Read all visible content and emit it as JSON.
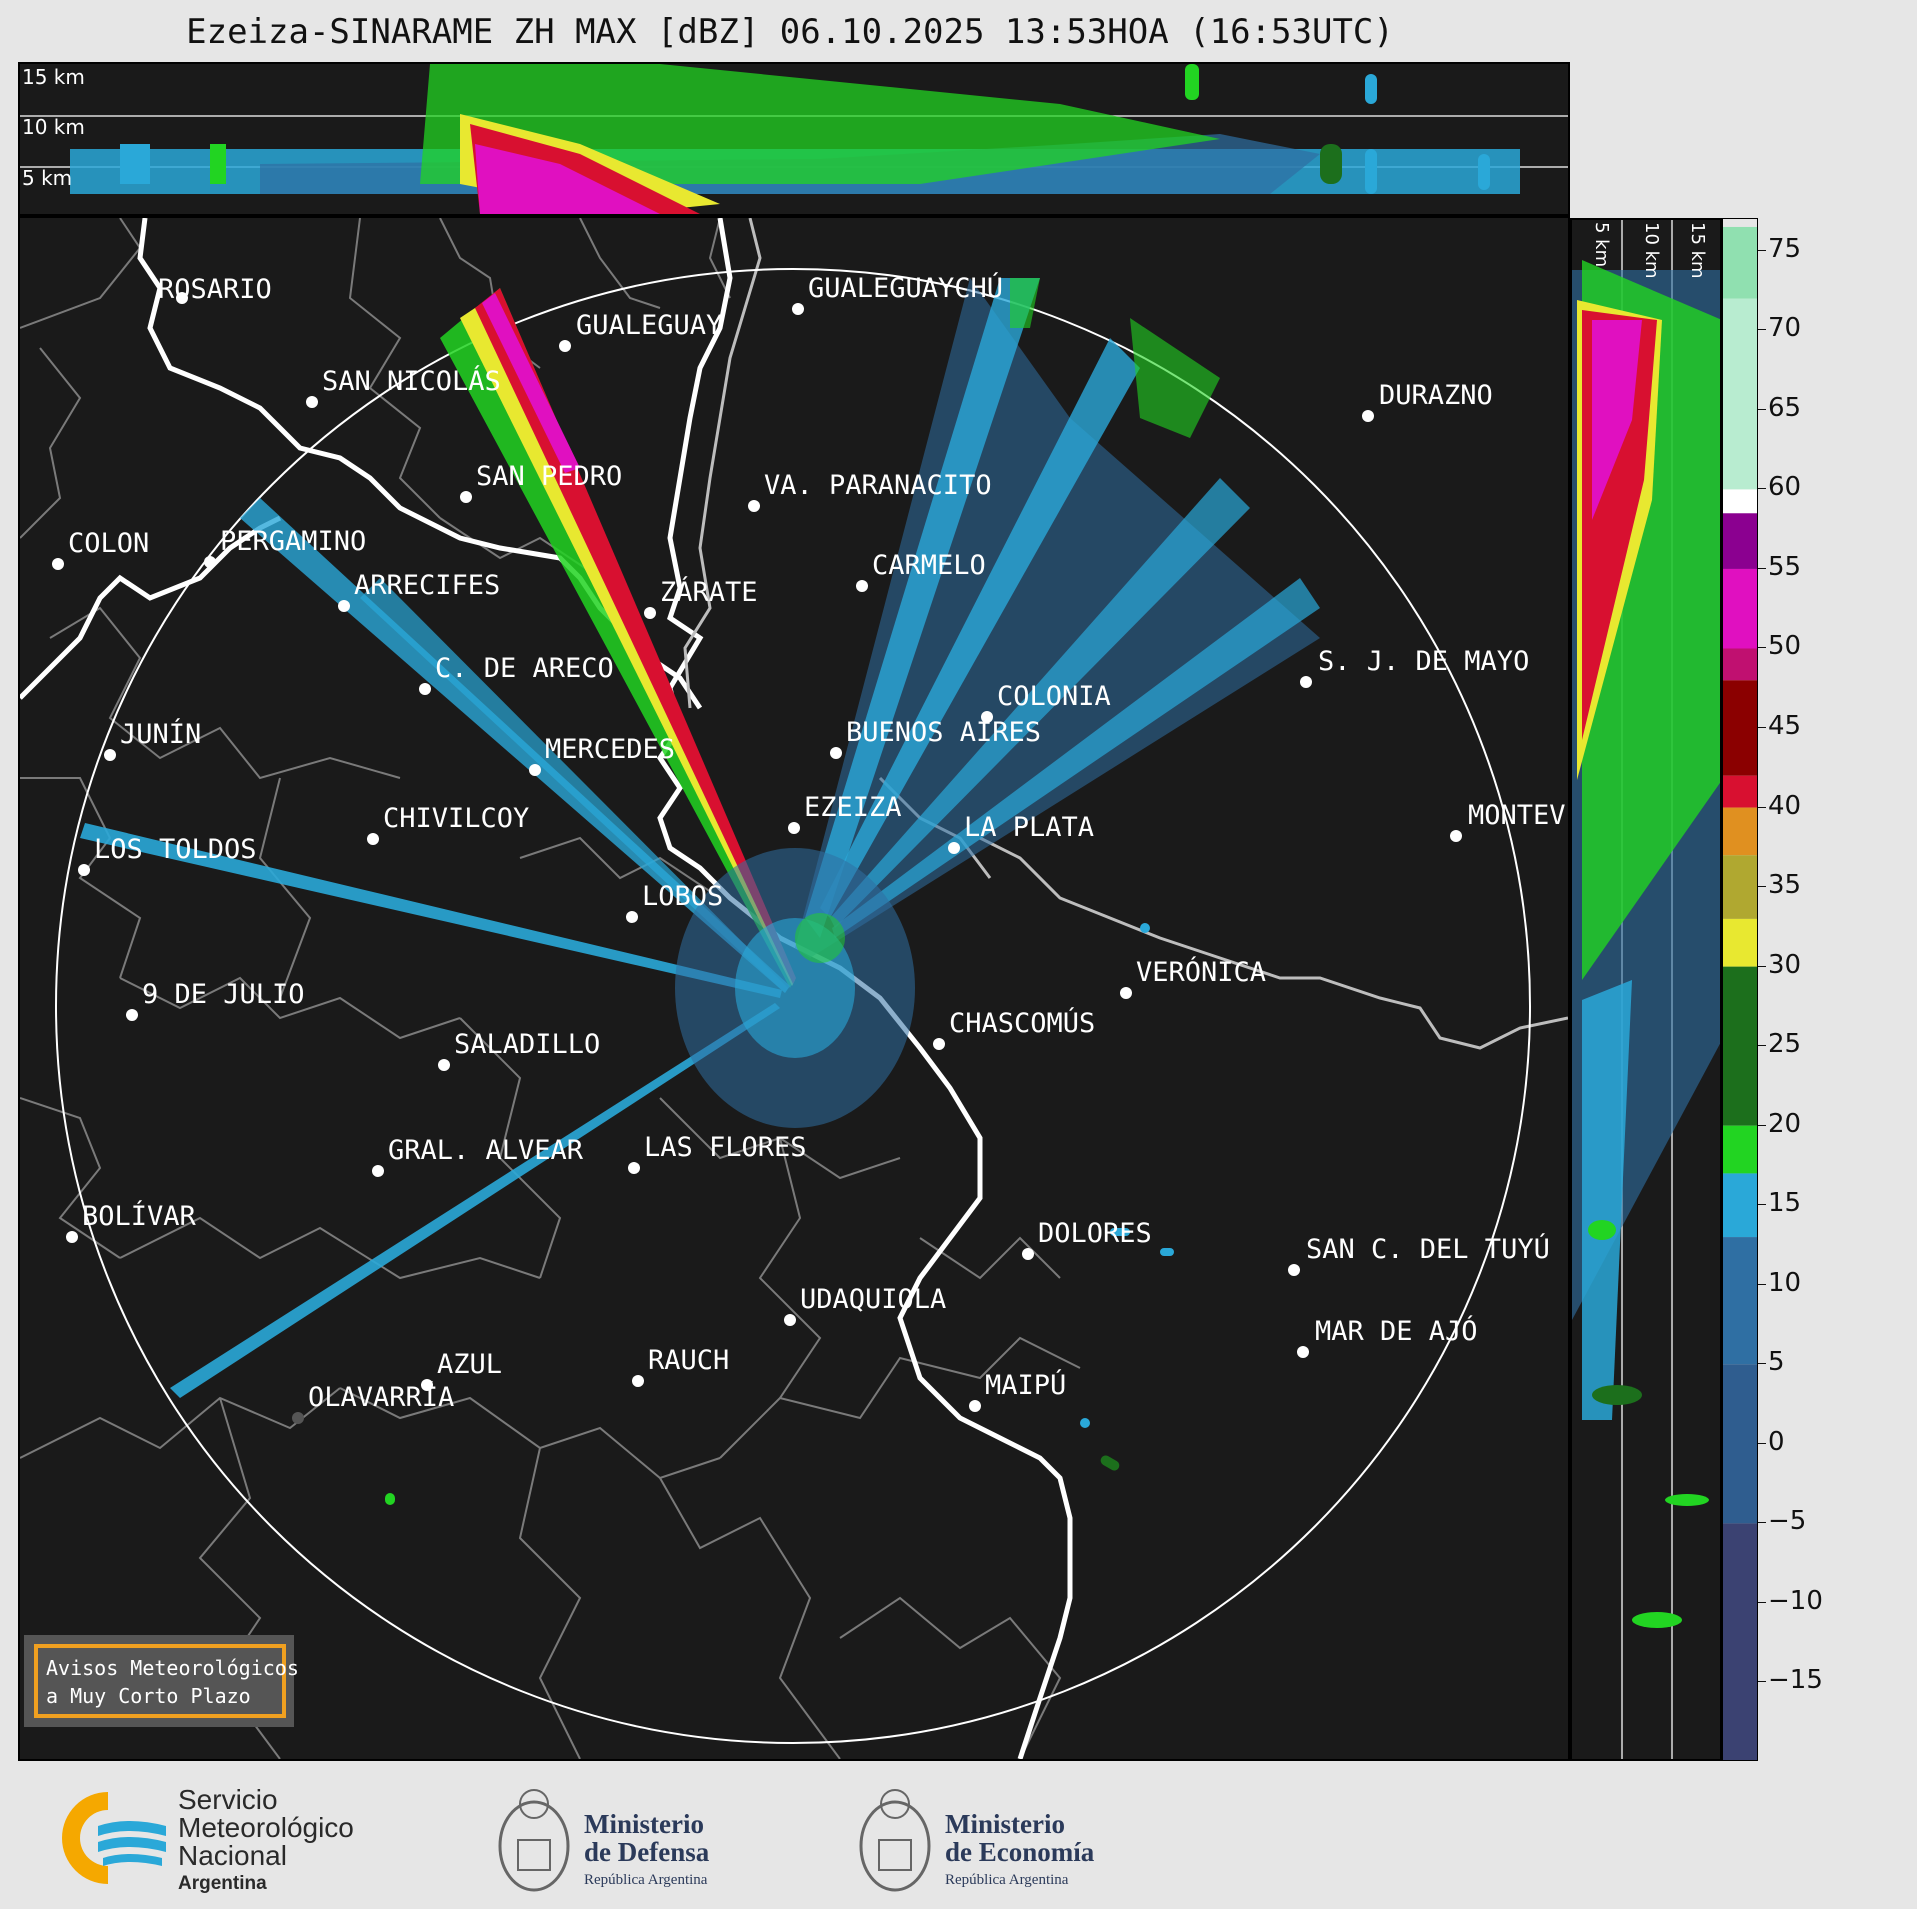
{
  "title": "Ezeiza-SINARAME ZH MAX [dBZ] 06.10.2025 13:53HOA (16:53UTC)",
  "top_panel": {
    "height_labels": [
      "15 km",
      "10 km",
      "5 km"
    ]
  },
  "side_panel": {
    "height_labels": [
      "5 km",
      "10 km",
      "15 km"
    ]
  },
  "colorbar": {
    "ticks": [
      "75",
      "70",
      "65",
      "60",
      "55",
      "50",
      "45",
      "40",
      "35",
      "30",
      "25",
      "20",
      "15",
      "10",
      "5",
      "0",
      "−5",
      "−10",
      "−15"
    ],
    "range": [
      -20,
      77
    ],
    "colors": {
      "dark_blue": "#3b4272",
      "blue": "#2f6fa3",
      "light_blue": "#2aa8d8",
      "green": "#22d422",
      "dark_green": "#1c6f1c",
      "yellow": "#e8e830",
      "olive": "#b0a830",
      "orange": "#e09020",
      "red": "#d81030",
      "dark_red": "#8b0000",
      "magenta": "#e010c0",
      "purple": "#8b0090",
      "white": "#ffffff",
      "pale_green": "#90e0b0"
    }
  },
  "cities": [
    {
      "name": "ROSARIO"
    },
    {
      "name": "GUALEGUAYCHÚ"
    },
    {
      "name": "GUALEGUAY"
    },
    {
      "name": "SAN NICOLÁS"
    },
    {
      "name": "DURAZNO"
    },
    {
      "name": "SAN PEDRO"
    },
    {
      "name": "VA. PARANACITO"
    },
    {
      "name": "COLON"
    },
    {
      "name": "PERGAMINO"
    },
    {
      "name": "CARMELO"
    },
    {
      "name": "ARRECIFES"
    },
    {
      "name": "ZÁRATE"
    },
    {
      "name": "S. J. DE MAYO"
    },
    {
      "name": "C. DE ARECO"
    },
    {
      "name": "COLONIA"
    },
    {
      "name": "JUNÍN"
    },
    {
      "name": "BUENOS AIRES"
    },
    {
      "name": "MERCEDES"
    },
    {
      "name": "EZEIZA"
    },
    {
      "name": "MONTEV"
    },
    {
      "name": "CHIVILCOY"
    },
    {
      "name": "LA PLATA"
    },
    {
      "name": "LOS TOLDOS"
    },
    {
      "name": "LOBOS"
    },
    {
      "name": "VERÓNICA"
    },
    {
      "name": "9 DE JULIO"
    },
    {
      "name": "CHASCOMÚS"
    },
    {
      "name": "SALADILLO"
    },
    {
      "name": "GRAL. ALVEAR"
    },
    {
      "name": "LAS FLORES"
    },
    {
      "name": "BOLÍVAR"
    },
    {
      "name": "DOLORES"
    },
    {
      "name": "SAN C. DEL TUYÚ"
    },
    {
      "name": "UDAQUIOLA"
    },
    {
      "name": "MAR DE AJÓ"
    },
    {
      "name": "AZUL"
    },
    {
      "name": "RAUCH"
    },
    {
      "name": "OLAVARRÍA"
    },
    {
      "name": "MAIPÚ"
    }
  ],
  "warning_box": {
    "line1": "Avisos Meteorológicos",
    "line2": "a Muy Corto Plazo",
    "border_color": "#f0a020"
  },
  "logos": {
    "smn": {
      "line1": "Servicio",
      "line2": "Meteorológico",
      "line3": "Nacional",
      "line4": "Argentina"
    },
    "defensa": {
      "line1": "Ministerio",
      "line2": "de Defensa",
      "line3": "República Argentina"
    },
    "economia": {
      "line1": "Ministerio",
      "line2": "de Economía",
      "line3": "República Argentina"
    }
  }
}
